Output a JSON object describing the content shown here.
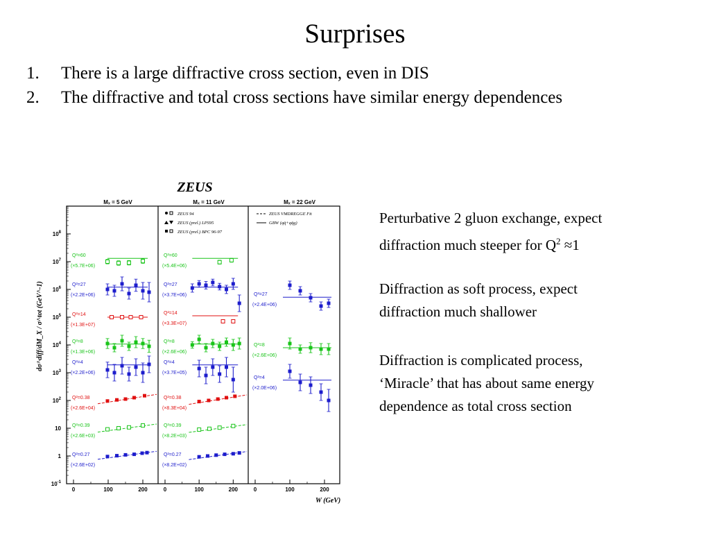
{
  "slide": {
    "title": "Surprises",
    "items": [
      {
        "num": "1.",
        "text": "There is a large diffractive cross section, even in DIS"
      },
      {
        "num": "2.",
        "text": "The diffractive and total cross sections have similar energy dependences"
      }
    ],
    "notes": [
      [
        "Perturbative 2 gluon exchange, expect",
        "diffraction much steeper for Q",
        "2",
        " ≈1"
      ],
      [
        "Diffraction as soft process, expect",
        "diffraction much shallower"
      ],
      [
        "Diffraction is complicated process,",
        "‘Miracle’ that has about same energy",
        "dependence as total cross section"
      ]
    ]
  },
  "chart_data": {
    "type": "scatter",
    "title": "ZEUS",
    "xlabel": "W (GeV)",
    "ylabel": "dσ^diff/dM_X / σ^tot (GeV^-1)",
    "xlim": [
      0,
      240
    ],
    "ylim_log10": [
      -1,
      9
    ],
    "x_ticks": [
      "0",
      "100",
      "200"
    ],
    "y_ticks": [
      "10^-1",
      "1",
      "10",
      "10^2",
      "10^3",
      "10^4",
      "10^5",
      "10^6",
      "10^7",
      "10^8"
    ],
    "scale": "log-y",
    "colors": {
      "blue": "#1d1dcc",
      "green": "#19c419",
      "red": "#e01010"
    },
    "panels": [
      {
        "title": "M_X = 5 GeV",
        "series": [
          {
            "color": "green",
            "q2": "Q²=60",
            "factor": "(×5.7E+06)",
            "marker": "open",
            "line_y": 7.12,
            "line_x": [
              98,
              214
            ],
            "dashed": false,
            "x": [
              98,
              130,
              160,
              200
            ],
            "y": [
              7.0,
              6.95,
              6.96,
              7.02
            ],
            "err": [
              0.08,
              0.08,
              0.08,
              0.08
            ]
          },
          {
            "color": "blue",
            "q2": "Q²=27",
            "factor": "(×2.2E+06)",
            "marker": "filled",
            "line_y": 6.08,
            "line_x": [
              98,
              214
            ],
            "dashed": false,
            "x": [
              98,
              118,
              140,
              160,
              180,
              200,
              218
            ],
            "y": [
              6.0,
              5.95,
              6.2,
              5.85,
              6.15,
              5.95,
              5.9
            ],
            "err": [
              0.2,
              0.2,
              0.25,
              0.2,
              0.22,
              0.3,
              0.35
            ]
          },
          {
            "color": "red",
            "q2": "Q²=14",
            "factor": "(×1.3E+07)",
            "marker": "open",
            "line_y": 5.0,
            "line_x": [
              98,
              214
            ],
            "dashed": false,
            "x": [
              110,
              140,
              165,
              195
            ],
            "y": [
              5.0,
              5.0,
              5.0,
              5.0
            ],
            "err": [
              0.04,
              0.04,
              0.04,
              0.04
            ]
          },
          {
            "color": "green",
            "q2": "Q²=8",
            "factor": "(×1.3E+06)",
            "marker": "filled",
            "line_y": 4.03,
            "line_x": [
              98,
              214
            ],
            "dashed": false,
            "x": [
              98,
              118,
              140,
              160,
              180,
              200,
              218
            ],
            "y": [
              4.05,
              3.9,
              4.15,
              3.95,
              4.1,
              4.05,
              3.95
            ],
            "err": [
              0.18,
              0.15,
              0.2,
              0.15,
              0.2,
              0.18,
              0.22
            ]
          },
          {
            "color": "blue",
            "q2": "Q²=4",
            "factor": "(×2.2E+06)",
            "marker": "filled",
            "line_y": 3.28,
            "line_x": [
              98,
              214
            ],
            "dashed": false,
            "x": [
              98,
              118,
              140,
              160,
              180,
              200,
              218
            ],
            "y": [
              3.1,
              3.0,
              3.25,
              2.95,
              3.2,
              3.0,
              3.3
            ],
            "err": [
              0.28,
              0.3,
              0.3,
              0.25,
              0.3,
              0.35,
              0.3
            ]
          },
          {
            "color": "red",
            "q2": "Q²=0.38",
            "factor": "(×2.6E+04)",
            "marker": "filled",
            "line_y": 2.0,
            "line_x": [
              70,
              240
            ],
            "dashed": true,
            "x": [
              98,
              125,
              150,
              175,
              205
            ],
            "y": [
              1.98,
              2.02,
              2.05,
              2.1,
              2.17
            ],
            "err": [
              0.03,
              0.03,
              0.03,
              0.03,
              0.03
            ]
          },
          {
            "color": "green",
            "q2": "Q²=0.39",
            "factor": "(×2.6E+03)",
            "marker": "open",
            "line_y": 1.0,
            "line_x": [
              70,
              240
            ],
            "dashed": true,
            "x": [
              98,
              130,
              160,
              200
            ],
            "y": [
              0.96,
              1.0,
              1.03,
              1.1
            ],
            "err": [
              0.03,
              0.03,
              0.03,
              0.03
            ]
          },
          {
            "color": "blue",
            "q2": "Q²=0.27",
            "factor": "(×2.6E+02)",
            "marker": "filled",
            "line_y": -0.05,
            "line_x": [
              70,
              240
            ],
            "dashed": true,
            "x": [
              98,
              125,
              150,
              175,
              198,
              212
            ],
            "y": [
              -0.02,
              0.01,
              0.04,
              0.06,
              0.1,
              0.12
            ],
            "err": [
              0.03,
              0.03,
              0.03,
              0.03,
              0.03,
              0.03
            ]
          }
        ]
      },
      {
        "title": "M_X = 11 GeV",
        "series": [
          {
            "color": "green",
            "q2": "Q²=60",
            "factor": "(×5.4E+06)",
            "marker": "open",
            "line_y": 7.12,
            "line_x": [
              80,
              214
            ],
            "dashed": false,
            "x": [
              160,
              195
            ],
            "y": [
              6.98,
              7.05
            ],
            "err": [
              0.07,
              0.07
            ]
          },
          {
            "color": "blue",
            "q2": "Q²=27",
            "factor": "(×3.7E+06)",
            "marker": "filled",
            "line_y": 6.08,
            "line_x": [
              80,
              214
            ],
            "dashed": false,
            "x": [
              80,
              100,
              120,
              140,
              160,
              180,
              200,
              218
            ],
            "y": [
              6.05,
              6.2,
              6.15,
              6.25,
              6.1,
              6.0,
              6.2,
              5.5
            ],
            "err": [
              0.15,
              0.12,
              0.14,
              0.12,
              0.12,
              0.15,
              0.2,
              0.3
            ]
          },
          {
            "color": "red",
            "q2": "Q²=14",
            "factor": "(×3.3E+07)",
            "marker": "open",
            "line_y": 5.05,
            "line_x": [
              80,
              214
            ],
            "dashed": false,
            "x": [
              170,
              200
            ],
            "y": [
              4.85,
              4.85
            ],
            "err": [
              0.04,
              0.04
            ]
          },
          {
            "color": "green",
            "q2": "Q²=8",
            "factor": "(×2.6E+06)",
            "marker": "filled",
            "line_y": 4.03,
            "line_x": [
              80,
              214
            ],
            "dashed": false,
            "x": [
              80,
              100,
              120,
              140,
              160,
              180,
              200,
              218
            ],
            "y": [
              4.0,
              4.2,
              3.9,
              4.05,
              3.95,
              4.1,
              4.0,
              4.05
            ],
            "err": [
              0.12,
              0.15,
              0.15,
              0.15,
              0.15,
              0.15,
              0.2,
              0.2
            ]
          },
          {
            "color": "blue",
            "q2": "Q²=4",
            "factor": "(×3.7E+05)",
            "marker": "filled",
            "line_y": 3.28,
            "line_x": [
              80,
              214
            ],
            "dashed": false,
            "x": [
              100,
              120,
              140,
              160,
              180,
              200
            ],
            "y": [
              3.15,
              2.9,
              3.2,
              2.95,
              3.2,
              2.75
            ],
            "err": [
              0.3,
              0.3,
              0.3,
              0.3,
              0.35,
              0.45
            ]
          },
          {
            "color": "red",
            "q2": "Q²=0.38",
            "factor": "(×8.3E+04)",
            "marker": "filled",
            "line_y": 2.0,
            "line_x": [
              70,
              240
            ],
            "dashed": true,
            "x": [
              100,
              128,
              155,
              180,
              205
            ],
            "y": [
              1.96,
              2.0,
              2.05,
              2.1,
              2.15
            ],
            "err": [
              0.03,
              0.03,
              0.03,
              0.03,
              0.03
            ]
          },
          {
            "color": "green",
            "q2": "Q²=0.39",
            "factor": "(×8.2E+03)",
            "marker": "open",
            "line_y": 1.0,
            "line_x": [
              70,
              240
            ],
            "dashed": true,
            "x": [
              100,
              130,
              160,
              200
            ],
            "y": [
              0.95,
              0.98,
              1.02,
              1.08
            ],
            "err": [
              0.03,
              0.03,
              0.03,
              0.03
            ]
          },
          {
            "color": "blue",
            "q2": "Q²=0.27",
            "factor": "(×8.2E+02)",
            "marker": "filled",
            "line_y": -0.05,
            "line_x": [
              70,
              240
            ],
            "dashed": true,
            "x": [
              100,
              125,
              150,
              175,
              200,
              218
            ],
            "y": [
              -0.03,
              0.0,
              0.03,
              0.06,
              0.08,
              0.11
            ],
            "err": [
              0.03,
              0.03,
              0.03,
              0.03,
              0.03,
              0.03
            ]
          }
        ]
      },
      {
        "title": "M_X = 22 GeV",
        "series": [
          {
            "color": "blue",
            "q2": "Q²=27",
            "factor": "(×2.4E+06)",
            "marker": "filled",
            "line_y": 5.72,
            "line_x": [
              80,
              220
            ],
            "dashed": false,
            "x": [
              100,
              130,
              160,
              190,
              212
            ],
            "y": [
              6.15,
              5.95,
              5.7,
              5.4,
              5.5
            ],
            "err": [
              0.15,
              0.15,
              0.15,
              0.15,
              0.15
            ]
          },
          {
            "color": "green",
            "q2": "Q²=8",
            "factor": "(×2.6E+06)",
            "marker": "filled",
            "line_y": 3.9,
            "line_x": [
              80,
              220
            ],
            "dashed": false,
            "x": [
              100,
              130,
              160,
              190,
              212
            ],
            "y": [
              4.05,
              3.85,
              3.9,
              3.85,
              3.85
            ],
            "err": [
              0.2,
              0.15,
              0.18,
              0.2,
              0.2
            ]
          },
          {
            "color": "blue",
            "q2": "Q²=4",
            "factor": "(×2.0E+06)",
            "marker": "filled",
            "line_y": 2.73,
            "line_x": [
              80,
              220
            ],
            "dashed": false,
            "x": [
              100,
              130,
              160,
              190,
              212
            ],
            "y": [
              3.05,
              2.65,
              2.55,
              2.3,
              2.0
            ],
            "err": [
              0.25,
              0.3,
              0.3,
              0.3,
              0.4
            ]
          }
        ]
      }
    ],
    "legend": [
      {
        "marker": "open/filled",
        "label": "ZEUS 94"
      },
      {
        "marker": "triangle",
        "label": "ZEUS (prel.) LPS95"
      },
      {
        "marker": "square",
        "label": "ZEUS (prel.) BPC 96-97"
      },
      {
        "marker": "dashed-line",
        "label": "ZEUS VMDREGGE Fit"
      },
      {
        "marker": "solid-line",
        "label": "GBW (qq̄+qq̄g)"
      }
    ]
  }
}
